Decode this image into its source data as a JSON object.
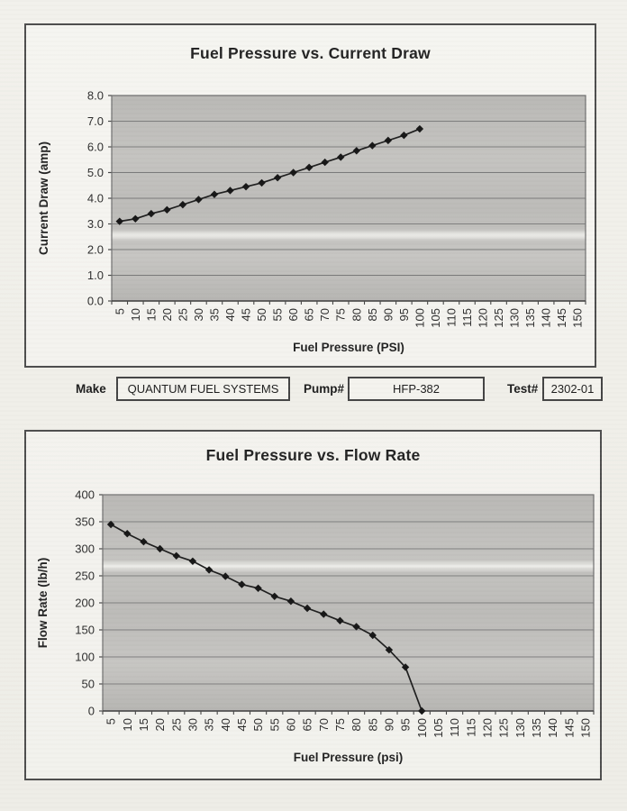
{
  "paper": {
    "background": "#f1f0eb"
  },
  "chart_data": [
    {
      "type": "line",
      "title": "Fuel Pressure vs. Current Draw",
      "xlabel": "Fuel Pressure (PSI)",
      "ylabel": "Current Draw (amp)",
      "categories": [
        5,
        10,
        15,
        20,
        25,
        30,
        35,
        40,
        45,
        50,
        55,
        60,
        65,
        70,
        75,
        80,
        85,
        90,
        95,
        100,
        105,
        110,
        115,
        120,
        125,
        130,
        135,
        140,
        145,
        150
      ],
      "x": [
        5,
        10,
        15,
        20,
        25,
        30,
        35,
        40,
        45,
        50,
        55,
        60,
        65,
        70,
        75,
        80,
        85,
        90,
        95,
        100
      ],
      "values": [
        3.1,
        3.2,
        3.4,
        3.55,
        3.75,
        3.95,
        4.15,
        4.3,
        4.45,
        4.6,
        4.8,
        5.0,
        5.2,
        5.4,
        5.6,
        5.85,
        6.05,
        6.25,
        6.45,
        6.7
      ],
      "ylim": [
        0,
        8
      ],
      "yticks": [
        0,
        1,
        2,
        3,
        4,
        5,
        6,
        7,
        8
      ],
      "y_decimals": 1,
      "grid": true,
      "legend": false,
      "marker": "diamond",
      "line_color": "#1d1d1d",
      "marker_color": "#151515",
      "plot_bg": "#bfbebb",
      "grid_color": "#7b7b7b"
    },
    {
      "type": "line",
      "title": "Fuel Pressure vs. Flow Rate",
      "xlabel": "Fuel Pressure (psi)",
      "ylabel": "Flow Rate (lb/h)",
      "categories": [
        5,
        10,
        15,
        20,
        25,
        30,
        35,
        40,
        45,
        50,
        55,
        60,
        65,
        70,
        75,
        80,
        85,
        90,
        95,
        100,
        105,
        110,
        115,
        120,
        125,
        130,
        135,
        140,
        145,
        150
      ],
      "x": [
        5,
        10,
        15,
        20,
        25,
        30,
        35,
        40,
        45,
        50,
        55,
        60,
        65,
        70,
        75,
        80,
        85,
        90,
        95,
        100
      ],
      "values": [
        345,
        328,
        313,
        300,
        287,
        277,
        261,
        249,
        234,
        227,
        212,
        203,
        190,
        179,
        167,
        156,
        140,
        113,
        81,
        0
      ],
      "ylim": [
        0,
        400
      ],
      "yticks": [
        0,
        50,
        100,
        150,
        200,
        250,
        300,
        350,
        400
      ],
      "y_decimals": 0,
      "grid": true,
      "legend": false,
      "marker": "diamond",
      "line_color": "#1d1d1d",
      "marker_color": "#151515",
      "plot_bg": "#bfbebb",
      "grid_color": "#7b7b7b"
    }
  ],
  "info_bar": {
    "fields": [
      {
        "label": "Make",
        "value": "QUANTUM FUEL SYSTEMS"
      },
      {
        "label": "Pump#",
        "value": "HFP-382"
      },
      {
        "label": "Test#",
        "value": "2302-01"
      }
    ]
  }
}
